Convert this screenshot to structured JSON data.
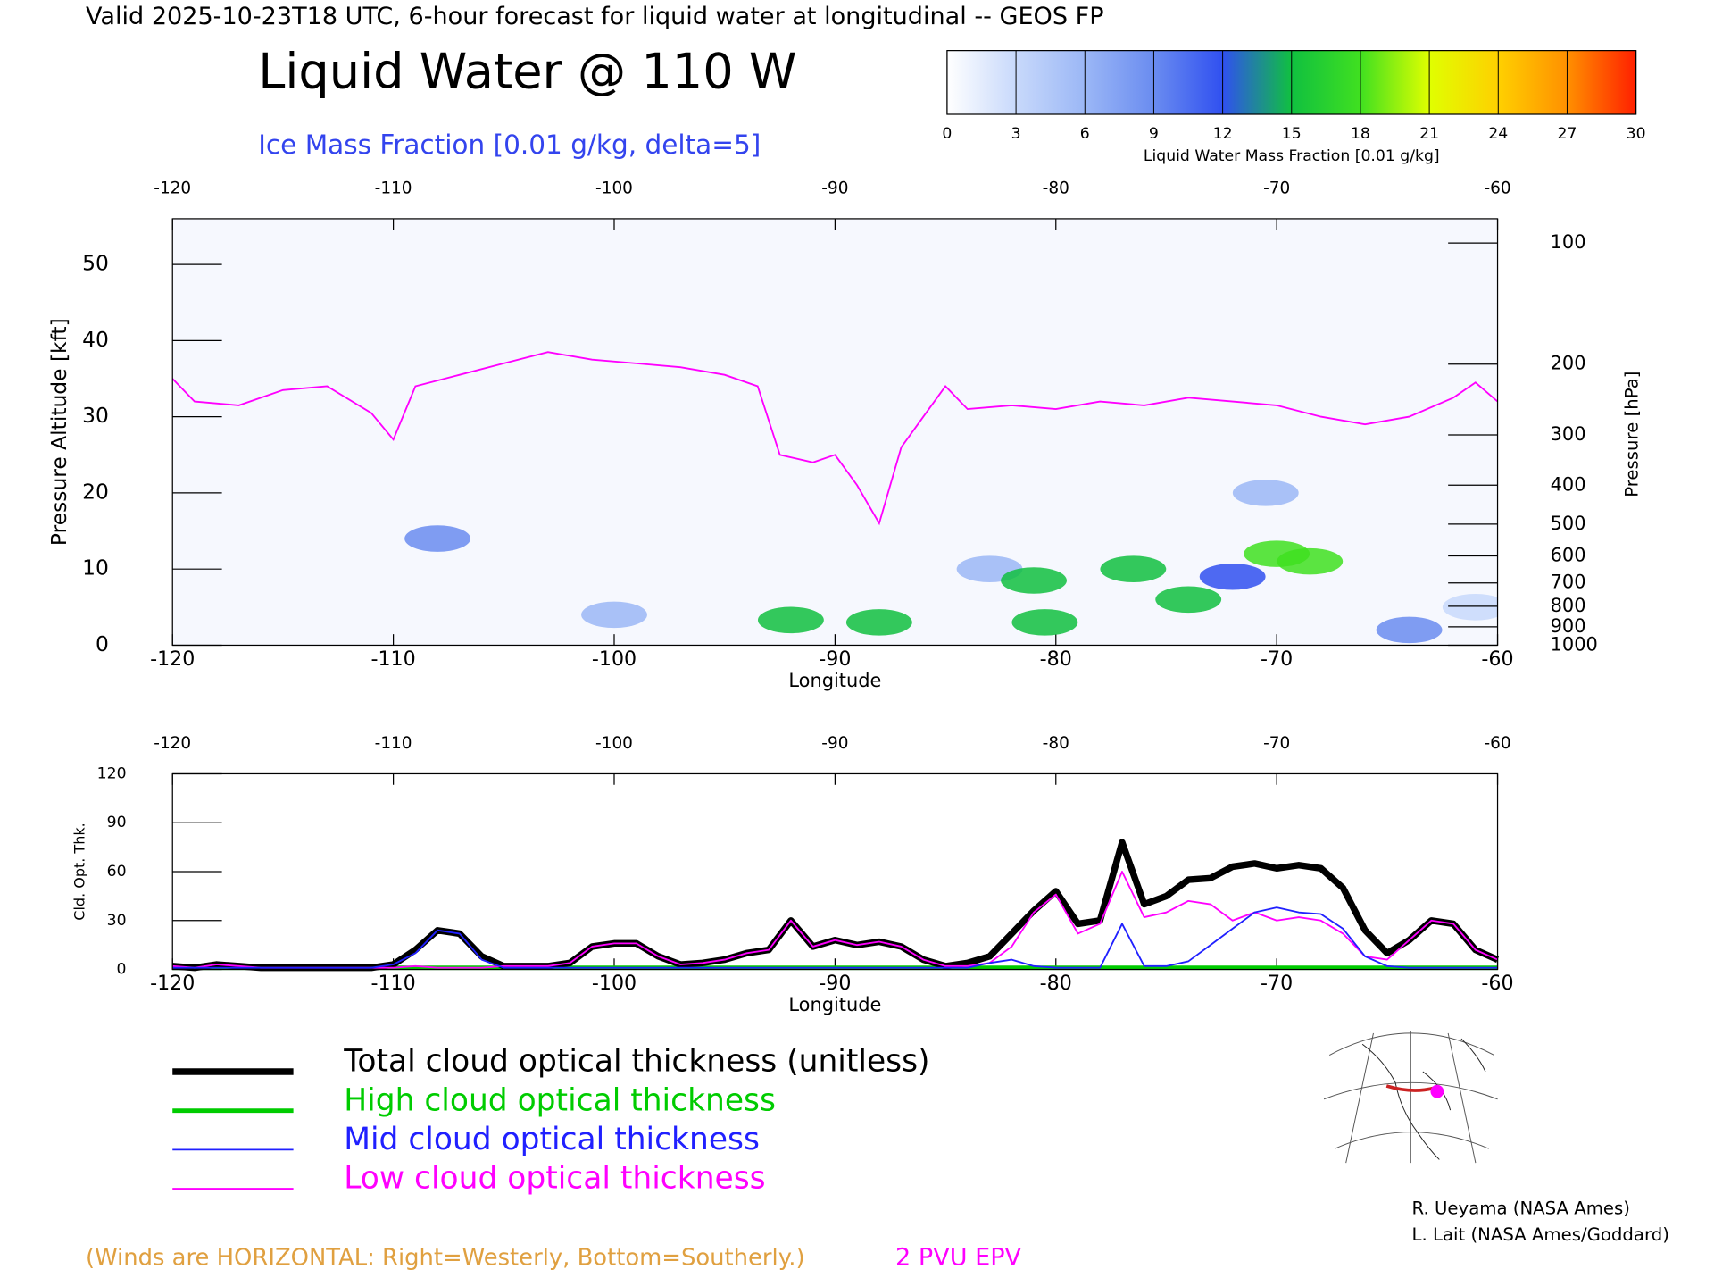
{
  "header": "Valid 2025-10-23T18 UTC, 6-hour forecast for liquid water at longitudinal -- GEOS FP",
  "credits": [
    "R. Ueyama (NASA Ames)",
    "L. Lait (NASA Ames/Goddard)"
  ],
  "chart_data": [
    {
      "type": "heatmap",
      "title": "Liquid Water @ 110 W",
      "subtitle": "Ice Mass Fraction [0.01 g/kg, delta=5]",
      "annotation": "(Winds are HORIZONTAL: Right=Westerly, Bottom=Southerly.)",
      "x_label": "Longitude",
      "y_label": "Pressure Altitude [kft]",
      "y2_label": "Pressure [hPa]",
      "xlim": [
        -120,
        -60
      ],
      "xticks": [
        -120,
        -110,
        -100,
        -90,
        -80,
        -70,
        -60
      ],
      "ylim": [
        0,
        56
      ],
      "yticks": [
        0,
        10,
        20,
        30,
        40,
        50
      ],
      "y2scale": "log",
      "y2lim": [
        1000,
        87
      ],
      "y2ticks": [
        100,
        200,
        300,
        400,
        500,
        600,
        700,
        800,
        900,
        1000
      ],
      "colorbar": {
        "label": "Liquid Water Mass Fraction [0.01 g/kg]",
        "ticks": [
          0,
          3,
          6,
          9,
          12,
          15,
          18,
          21,
          24,
          27,
          30
        ],
        "colors": [
          "#ffffff",
          "#c8d9fb",
          "#9bb7f6",
          "#6a8cf0",
          "#3050f0",
          "#10c040",
          "#40e020",
          "#e0ff00",
          "#ffd000",
          "#ff9000",
          "#ff2000"
        ]
      },
      "cells": [
        {
          "x": -61,
          "y": 5,
          "value": 4
        },
        {
          "x": -70.5,
          "y": 20,
          "value": 5
        },
        {
          "x": -83,
          "y": 10,
          "value": 6
        },
        {
          "x": -100,
          "y": 4,
          "value": 7
        },
        {
          "x": -108,
          "y": 14,
          "value": 8
        },
        {
          "x": -64,
          "y": 2,
          "value": 8
        },
        {
          "x": -72,
          "y": 9,
          "value": 12
        },
        {
          "x": -76.5,
          "y": 10,
          "value": 14
        },
        {
          "x": -74,
          "y": 6,
          "value": 14
        },
        {
          "x": -88,
          "y": 3,
          "value": 14
        },
        {
          "x": -81,
          "y": 8.5,
          "value": 15
        },
        {
          "x": -80.5,
          "y": 3,
          "value": 15
        },
        {
          "x": -92,
          "y": 3.3,
          "value": 16
        },
        {
          "x": -68.5,
          "y": 11,
          "value": 17
        },
        {
          "x": -70,
          "y": 12,
          "value": 19
        }
      ],
      "series": [
        {
          "name": "2 PVU EPV",
          "color": "#ff00ff",
          "x": [
            -120,
            -119,
            -117,
            -115,
            -113,
            -111,
            -110,
            -109,
            -107,
            -105,
            -103,
            -101,
            -99,
            -97,
            -95,
            -93.5,
            -92.5,
            -91,
            -90,
            -89,
            -88,
            -87,
            -86,
            -85,
            -84,
            -82,
            -80,
            -78,
            -76,
            -74,
            -72,
            -70,
            -68,
            -66,
            -64,
            -62,
            -61,
            -60
          ],
          "values": [
            35,
            32,
            31.5,
            33.5,
            34,
            30.5,
            27,
            34,
            35.5,
            37,
            38.5,
            37.5,
            37,
            36.5,
            35.5,
            34,
            25,
            24,
            25,
            21,
            16,
            26,
            30,
            34,
            31,
            31.5,
            31,
            32,
            31.5,
            32.5,
            32,
            31.5,
            30,
            29,
            30,
            32.5,
            34.5,
            32
          ]
        }
      ]
    },
    {
      "type": "line",
      "x_label": "Longitude",
      "y_label": "Cld. Opt. Thk.",
      "xlim": [
        -120,
        -60
      ],
      "xticks": [
        -120,
        -110,
        -100,
        -90,
        -80,
        -70,
        -60
      ],
      "ylim": [
        0,
        120
      ],
      "yticks": [
        0,
        30,
        60,
        90,
        120
      ],
      "x": [
        -120,
        -119,
        -118,
        -117,
        -116,
        -115,
        -114,
        -113,
        -112,
        -111,
        -110,
        -109,
        -108,
        -107,
        -106,
        -105,
        -104,
        -103,
        -102,
        -101,
        -100,
        -99,
        -98,
        -97,
        -96,
        -95,
        -94,
        -93,
        -92,
        -91,
        -90,
        -89,
        -88,
        -87,
        -86,
        -85,
        -84,
        -83,
        -82,
        -81,
        -80,
        -79,
        -78,
        -77,
        -76,
        -75,
        -74,
        -73,
        -72,
        -71,
        -70,
        -69,
        -68,
        -67,
        -66,
        -65,
        -64,
        -63,
        -62,
        -61,
        -60
      ],
      "series": [
        {
          "name": "Total cloud optical thickness (unitless)",
          "color": "#000000",
          "width": 6,
          "values": [
            2,
            1,
            3,
            2,
            1,
            1,
            1,
            1,
            1,
            1,
            3,
            12,
            24,
            22,
            8,
            2,
            2,
            2,
            4,
            14,
            16,
            16,
            8,
            3,
            4,
            6,
            10,
            12,
            30,
            14,
            18,
            15,
            17,
            14,
            6,
            2,
            4,
            8,
            22,
            36,
            48,
            28,
            30,
            78,
            40,
            45,
            55,
            56,
            63,
            65,
            62,
            64,
            62,
            50,
            24,
            10,
            18,
            30,
            28,
            12,
            6
          ]
        },
        {
          "name": "High cloud optical thickness",
          "color": "#00cc00",
          "width": 4,
          "values": [
            1,
            1,
            1,
            1,
            1,
            1,
            1,
            1,
            1,
            1,
            1,
            1,
            1,
            1,
            1,
            1,
            1,
            1,
            1,
            1,
            1,
            1,
            1,
            1,
            1,
            1,
            1,
            1,
            1,
            1,
            1,
            1,
            1,
            1,
            1,
            1,
            1,
            1,
            1,
            1,
            1,
            1,
            1,
            1,
            1,
            1,
            1,
            1,
            1,
            1,
            1,
            1,
            1,
            1,
            1,
            1,
            1,
            1,
            1,
            1,
            1
          ]
        },
        {
          "name": "Mid cloud optical thickness",
          "color": "#2020ff",
          "width": 1.5,
          "values": [
            1,
            1,
            1,
            1,
            1,
            1,
            1,
            1,
            1,
            1,
            3,
            10,
            24,
            22,
            6,
            1,
            1,
            1,
            1,
            1,
            1,
            1,
            1,
            1,
            1,
            1,
            1,
            1,
            1,
            1,
            1,
            1,
            1,
            1,
            1,
            1,
            1,
            4,
            6,
            2,
            1,
            1,
            1,
            28,
            2,
            2,
            5,
            15,
            25,
            35,
            38,
            35,
            34,
            25,
            8,
            2,
            1,
            1,
            1,
            1,
            1
          ]
        },
        {
          "name": "Low cloud optical thickness",
          "color": "#ff00ff",
          "width": 1.5,
          "values": [
            2,
            1,
            3,
            2,
            1,
            1,
            1,
            1,
            1,
            1,
            1,
            2,
            1,
            1,
            1,
            2,
            2,
            2,
            4,
            14,
            16,
            16,
            8,
            3,
            4,
            6,
            10,
            12,
            30,
            14,
            18,
            15,
            17,
            14,
            6,
            2,
            2,
            4,
            14,
            35,
            46,
            22,
            28,
            60,
            32,
            35,
            42,
            40,
            30,
            35,
            30,
            32,
            30,
            22,
            8,
            6,
            18,
            30,
            28,
            12,
            6
          ]
        }
      ]
    }
  ]
}
